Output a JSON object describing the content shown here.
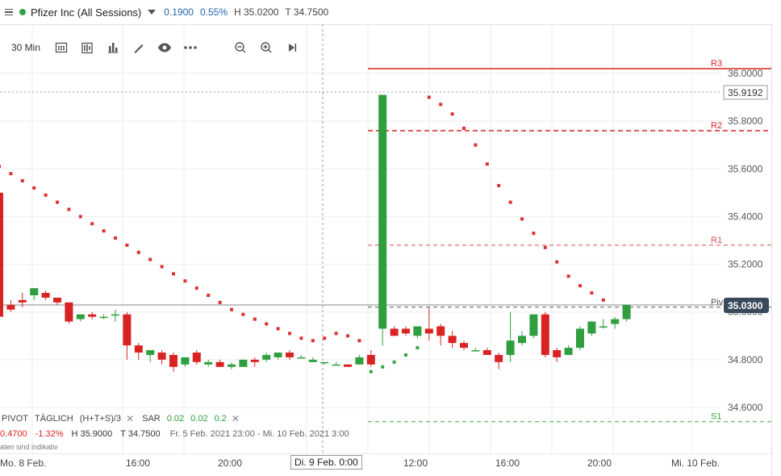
{
  "header": {
    "title": "Pfizer Inc (All Sessions)",
    "change": "0.1900",
    "change_pct": "0.55%",
    "high": "H 35.0200",
    "low": "T 34.7500",
    "status_color": "#2ea44f"
  },
  "toolbar": {
    "timeframe": "30 Min",
    "icons": [
      "calendar-icon",
      "bar-type-icon",
      "indicators-icon",
      "draw-icon",
      "eye-icon",
      "more-icon",
      "zoom-out-icon",
      "zoom-in-icon",
      "skip-end-icon"
    ]
  },
  "levels": {
    "r3": "R3",
    "r2": "R2",
    "r1": "R1",
    "piv": "Piv",
    "s1": "S1"
  },
  "price_axis": {
    "ticks": [
      "36.0000",
      "35.8000",
      "35.6000",
      "35.4000",
      "35.2000",
      "35.0000",
      "34.8000",
      "34.6000"
    ],
    "crosshair_price": "35.9192",
    "current_price": "35.0300"
  },
  "time_axis": {
    "ticks": [
      "Mo. 8 Feb.",
      "16:00",
      "20:00",
      "12:00",
      "16:00",
      "20:00",
      "Mi. 10 Feb."
    ],
    "crosshair_time": "Di. 9 Feb. 0:00"
  },
  "indicators": {
    "pivot_label": "PIVOT",
    "pivot_mode": "TÄGLICH",
    "pivot_formula": "(H+T+S)/3",
    "sar_label": "SAR",
    "sar_p1": "0.02",
    "sar_p2": "0.02",
    "sar_p3": "0.2"
  },
  "info_bar": {
    "change": "0.4700",
    "change_pct": "-1.32%",
    "high": "H 35.9000",
    "low": "T 34.7500",
    "range": "Fr. 5 Feb. 2021 23:00 - Mi. 10 Feb. 2021 3:00",
    "note": "aten sind indikativ"
  },
  "colors": {
    "up": "#2e9e3e",
    "down": "#d92323",
    "sar": "#e03030",
    "sar_low": "#3aa54a"
  },
  "chart_data": {
    "type": "candlestick",
    "pivots": {
      "R3": 36.02,
      "R2": 35.76,
      "R1": 35.28,
      "Piv": 35.02,
      "S1": 34.54
    },
    "candles": [
      {
        "o": 35.5,
        "h": 35.5,
        "c": 34.98,
        "l": 34.98
      },
      {
        "o": 35.03,
        "h": 35.05,
        "c": 35.01,
        "l": 35.0
      },
      {
        "o": 35.05,
        "h": 35.08,
        "c": 35.04,
        "l": 35.02
      },
      {
        "o": 35.07,
        "h": 35.09,
        "c": 35.1,
        "l": 35.05
      },
      {
        "o": 35.08,
        "h": 35.09,
        "c": 35.06,
        "l": 35.05
      },
      {
        "o": 35.06,
        "h": 35.06,
        "c": 35.04,
        "l": 35.03
      },
      {
        "o": 35.04,
        "h": 35.04,
        "c": 34.96,
        "l": 34.95
      },
      {
        "o": 34.97,
        "h": 34.99,
        "c": 34.99,
        "l": 34.96
      },
      {
        "o": 34.99,
        "h": 35.0,
        "c": 34.98,
        "l": 34.97
      },
      {
        "o": 34.98,
        "h": 34.99,
        "c": 34.98,
        "l": 34.97
      },
      {
        "o": 34.99,
        "h": 35.01,
        "c": 34.99,
        "l": 34.96
      },
      {
        "o": 34.99,
        "h": 35.0,
        "c": 34.86,
        "l": 34.8
      },
      {
        "o": 34.86,
        "h": 34.87,
        "c": 34.83,
        "l": 34.8
      },
      {
        "o": 34.82,
        "h": 34.84,
        "c": 34.84,
        "l": 34.79
      },
      {
        "o": 34.83,
        "h": 34.84,
        "c": 34.8,
        "l": 34.78
      },
      {
        "o": 34.82,
        "h": 34.83,
        "c": 34.77,
        "l": 34.75
      },
      {
        "o": 34.78,
        "h": 34.81,
        "c": 34.81,
        "l": 34.77
      },
      {
        "o": 34.83,
        "h": 34.84,
        "c": 34.79,
        "l": 34.78
      },
      {
        "o": 34.78,
        "h": 34.8,
        "c": 34.79,
        "l": 34.77
      },
      {
        "o": 34.79,
        "h": 34.8,
        "c": 34.77,
        "l": 34.77
      },
      {
        "o": 34.77,
        "h": 34.79,
        "c": 34.78,
        "l": 34.76
      },
      {
        "o": 34.77,
        "h": 34.8,
        "c": 34.8,
        "l": 34.77
      },
      {
        "o": 34.8,
        "h": 34.81,
        "c": 34.79,
        "l": 34.77
      },
      {
        "o": 34.8,
        "h": 34.83,
        "c": 34.82,
        "l": 34.79
      },
      {
        "o": 34.81,
        "h": 34.83,
        "c": 34.83,
        "l": 34.8
      },
      {
        "o": 34.83,
        "h": 34.84,
        "c": 34.81,
        "l": 34.8
      },
      {
        "o": 34.81,
        "h": 34.82,
        "c": 34.81,
        "l": 34.81
      },
      {
        "o": 34.79,
        "h": 34.81,
        "c": 34.8,
        "l": 34.79
      },
      {
        "o": 34.79,
        "h": 34.79,
        "c": 34.79,
        "l": 34.78
      },
      {
        "o": 34.78,
        "h": 34.79,
        "c": 34.78,
        "l": 34.78
      },
      {
        "o": 34.78,
        "h": 34.78,
        "c": 34.77,
        "l": 34.77
      },
      {
        "o": 34.78,
        "h": 34.82,
        "c": 34.81,
        "l": 34.78
      },
      {
        "o": 34.82,
        "h": 34.84,
        "c": 34.78,
        "l": 34.77
      },
      {
        "o": 34.93,
        "h": 35.91,
        "c": 35.91,
        "l": 34.86
      },
      {
        "o": 34.93,
        "h": 34.94,
        "c": 34.9,
        "l": 34.9
      },
      {
        "o": 34.93,
        "h": 34.94,
        "c": 34.91,
        "l": 34.9
      },
      {
        "o": 34.9,
        "h": 34.93,
        "c": 34.94,
        "l": 34.89
      },
      {
        "o": 34.93,
        "h": 35.02,
        "c": 34.91,
        "l": 34.88
      },
      {
        "o": 34.94,
        "h": 34.95,
        "c": 34.9,
        "l": 34.86
      },
      {
        "o": 34.9,
        "h": 34.92,
        "c": 34.87,
        "l": 34.85
      },
      {
        "o": 34.87,
        "h": 34.88,
        "c": 34.85,
        "l": 34.84
      },
      {
        "o": 34.84,
        "h": 34.85,
        "c": 34.84,
        "l": 34.84
      },
      {
        "o": 34.84,
        "h": 34.85,
        "c": 34.82,
        "l": 34.82
      },
      {
        "o": 34.82,
        "h": 34.83,
        "c": 34.79,
        "l": 34.76
      },
      {
        "o": 34.82,
        "h": 35.0,
        "c": 34.88,
        "l": 34.79
      },
      {
        "o": 34.87,
        "h": 34.92,
        "c": 34.9,
        "l": 34.86
      },
      {
        "o": 34.9,
        "h": 34.98,
        "c": 34.99,
        "l": 34.89
      },
      {
        "o": 34.99,
        "h": 35.0,
        "c": 34.82,
        "l": 34.81
      },
      {
        "o": 34.84,
        "h": 34.85,
        "c": 34.81,
        "l": 34.79
      },
      {
        "o": 34.82,
        "h": 34.86,
        "c": 34.85,
        "l": 34.82
      },
      {
        "o": 34.85,
        "h": 34.94,
        "c": 34.93,
        "l": 34.84
      },
      {
        "o": 34.91,
        "h": 34.96,
        "c": 34.96,
        "l": 34.9
      },
      {
        "o": 34.94,
        "h": 34.97,
        "c": 34.94,
        "l": 34.93
      },
      {
        "o": 34.95,
        "h": 34.98,
        "c": 34.97,
        "l": 34.93
      },
      {
        "o": 34.97,
        "h": 35.03,
        "c": 35.03,
        "l": 34.96
      }
    ],
    "sar": [
      {
        "i": 0,
        "v": 35.61,
        "side": "above"
      },
      {
        "i": 1,
        "v": 35.58,
        "side": "above"
      },
      {
        "i": 2,
        "v": 35.55,
        "side": "above"
      },
      {
        "i": 3,
        "v": 35.52,
        "side": "above"
      },
      {
        "i": 4,
        "v": 35.49,
        "side": "above"
      },
      {
        "i": 5,
        "v": 35.46,
        "side": "above"
      },
      {
        "i": 6,
        "v": 35.43,
        "side": "above"
      },
      {
        "i": 7,
        "v": 35.4,
        "side": "above"
      },
      {
        "i": 8,
        "v": 35.37,
        "side": "above"
      },
      {
        "i": 9,
        "v": 35.34,
        "side": "above"
      },
      {
        "i": 10,
        "v": 35.31,
        "side": "above"
      },
      {
        "i": 11,
        "v": 35.28,
        "side": "above"
      },
      {
        "i": 12,
        "v": 35.25,
        "side": "above"
      },
      {
        "i": 13,
        "v": 35.22,
        "side": "above"
      },
      {
        "i": 14,
        "v": 35.19,
        "side": "above"
      },
      {
        "i": 15,
        "v": 35.16,
        "side": "above"
      },
      {
        "i": 16,
        "v": 35.13,
        "side": "above"
      },
      {
        "i": 17,
        "v": 35.1,
        "side": "above"
      },
      {
        "i": 18,
        "v": 35.07,
        "side": "above"
      },
      {
        "i": 19,
        "v": 35.04,
        "side": "above"
      },
      {
        "i": 20,
        "v": 35.01,
        "side": "above"
      },
      {
        "i": 21,
        "v": 34.99,
        "side": "above"
      },
      {
        "i": 22,
        "v": 34.97,
        "side": "above"
      },
      {
        "i": 23,
        "v": 34.95,
        "side": "above"
      },
      {
        "i": 24,
        "v": 34.93,
        "side": "above"
      },
      {
        "i": 25,
        "v": 34.91,
        "side": "above"
      },
      {
        "i": 26,
        "v": 34.89,
        "side": "above"
      },
      {
        "i": 27,
        "v": 34.88,
        "side": "above"
      },
      {
        "i": 28,
        "v": 34.89,
        "side": "above"
      },
      {
        "i": 29,
        "v": 34.91,
        "side": "above"
      },
      {
        "i": 30,
        "v": 34.9,
        "side": "above"
      },
      {
        "i": 31,
        "v": 34.88,
        "side": "above"
      },
      {
        "i": 32,
        "v": 34.75,
        "side": "below"
      },
      {
        "i": 33,
        "v": 34.77,
        "side": "below"
      },
      {
        "i": 34,
        "v": 34.79,
        "side": "below"
      },
      {
        "i": 35,
        "v": 34.82,
        "side": "below"
      },
      {
        "i": 36,
        "v": 34.85,
        "side": "below"
      },
      {
        "i": 37,
        "v": 35.9,
        "side": "above"
      },
      {
        "i": 38,
        "v": 35.87,
        "side": "above"
      },
      {
        "i": 39,
        "v": 35.83,
        "side": "above"
      },
      {
        "i": 40,
        "v": 35.77,
        "side": "above"
      },
      {
        "i": 41,
        "v": 35.7,
        "side": "above"
      },
      {
        "i": 42,
        "v": 35.62,
        "side": "above"
      },
      {
        "i": 43,
        "v": 35.53,
        "side": "above"
      },
      {
        "i": 44,
        "v": 35.46,
        "side": "above"
      },
      {
        "i": 45,
        "v": 35.39,
        "side": "above"
      },
      {
        "i": 46,
        "v": 35.33,
        "side": "above"
      },
      {
        "i": 47,
        "v": 35.27,
        "side": "above"
      },
      {
        "i": 48,
        "v": 35.21,
        "side": "above"
      },
      {
        "i": 49,
        "v": 35.15,
        "side": "above"
      },
      {
        "i": 50,
        "v": 35.11,
        "side": "above"
      },
      {
        "i": 51,
        "v": 35.08,
        "side": "above"
      },
      {
        "i": 52,
        "v": 35.05,
        "side": "above"
      }
    ],
    "ylim": [
      34.5,
      36.17
    ]
  }
}
